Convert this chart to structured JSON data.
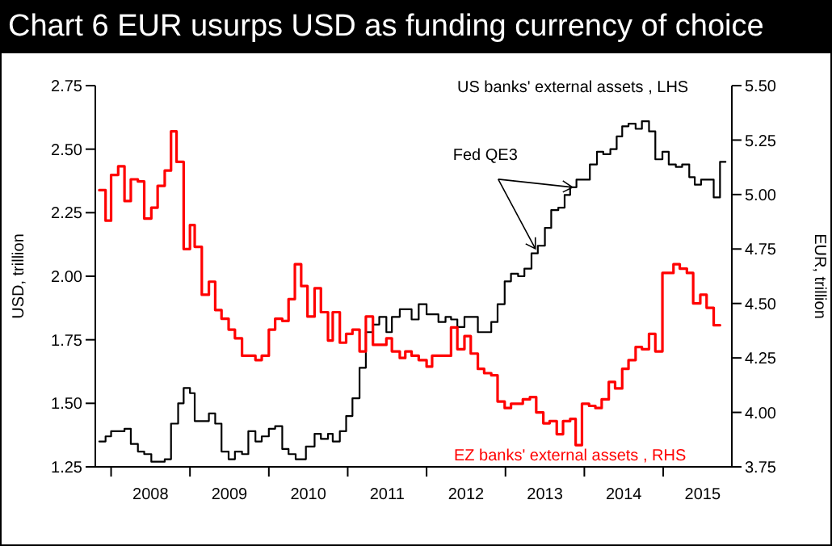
{
  "chart_data": {
    "type": "line",
    "title": "Chart 6 EUR usurps USD as funding currency of choice",
    "ylabel": "USD, trillion",
    "y2label": "EUR, trillion",
    "annotations": [
      {
        "text": "Fed QE3",
        "x": 2013.85,
        "y": 2.35
      }
    ],
    "line_style": "solid",
    "marker": "none",
    "xlim": [
      2007.8,
      2015.87
    ],
    "xticks": [
      {
        "value": 2008,
        "label": null
      },
      {
        "value": 2008.5,
        "label": "2008"
      },
      {
        "value": 2009,
        "label": null
      },
      {
        "value": 2009.5,
        "label": "2009"
      },
      {
        "value": 2010,
        "label": null
      },
      {
        "value": 2010.5,
        "label": "2010"
      },
      {
        "value": 2011,
        "label": null
      },
      {
        "value": 2011.5,
        "label": "2011"
      },
      {
        "value": 2012,
        "label": null
      },
      {
        "value": 2012.5,
        "label": "2012"
      },
      {
        "value": 2013,
        "label": null
      },
      {
        "value": 2013.5,
        "label": "2013"
      },
      {
        "value": 2014,
        "label": null
      },
      {
        "value": 2014.5,
        "label": "2014"
      },
      {
        "value": 2015,
        "label": null
      },
      {
        "value": 2015.5,
        "label": "2015"
      }
    ],
    "ylim": [
      1.25,
      2.75
    ],
    "yticks": [
      1.25,
      {
        "value": 1.5,
        "label": "1.50"
      },
      1.75,
      {
        "value": 2,
        "label": "2.00"
      },
      2.25,
      {
        "value": 2.5,
        "label": "2.50"
      },
      2.75
    ],
    "y2lim": [
      3.75,
      5.5
    ],
    "y2ticks": [
      3.75,
      {
        "value": 4,
        "label": "4.00"
      },
      4.25,
      {
        "value": 4.5,
        "label": "4.50"
      },
      4.75,
      {
        "value": 5,
        "label": "5.00"
      },
      5.25,
      {
        "value": 5.5,
        "label": "5.50"
      }
    ],
    "series": [
      {
        "name": "US banks' external assets , LHS",
        "color": "#000000",
        "type": "step",
        "axis": "y",
        "x": [
          2007.85,
          2007.93,
          2008.0,
          2008.09,
          2008.17,
          2008.25,
          2008.34,
          2008.42,
          2008.51,
          2008.61,
          2008.68,
          2008.76,
          2008.85,
          2008.92,
          2009.0,
          2009.06,
          2009.24,
          2009.32,
          2009.4,
          2009.49,
          2009.57,
          2009.66,
          2009.74,
          2009.83,
          2009.91,
          2010.0,
          2010.08,
          2010.17,
          2010.25,
          2010.34,
          2010.47,
          2010.58,
          2010.66,
          2010.75,
          2010.81,
          2010.9,
          2010.98,
          2011.06,
          2011.15,
          2011.23,
          2011.32,
          2011.4,
          2011.49,
          2011.56,
          2011.66,
          2011.73,
          2011.81,
          2011.9,
          2012.0,
          2012.07,
          2012.15,
          2012.24,
          2012.31,
          2012.39,
          2012.48,
          2012.56,
          2012.65,
          2012.73,
          2012.82,
          2012.9,
          2012.99,
          2013.07,
          2013.16,
          2013.24,
          2013.33,
          2013.41,
          2013.5,
          2013.58,
          2013.67,
          2013.75,
          2013.82,
          2013.9,
          2013.99,
          2014.07,
          2014.16,
          2014.24,
          2014.33,
          2014.41,
          2014.48,
          2014.56,
          2014.65,
          2014.73,
          2014.82,
          2014.9,
          2014.99,
          2015.07,
          2015.16,
          2015.24,
          2015.33,
          2015.4,
          2015.48,
          2015.64,
          2015.72,
          2015.79
        ],
        "values": [
          1.35,
          1.37,
          1.39,
          1.39,
          1.4,
          1.34,
          1.31,
          1.3,
          1.27,
          1.27,
          1.28,
          1.42,
          1.5,
          1.56,
          1.54,
          1.43,
          1.46,
          1.42,
          1.31,
          1.28,
          1.31,
          1.3,
          1.39,
          1.35,
          1.37,
          1.4,
          1.41,
          1.32,
          1.3,
          1.28,
          1.33,
          1.38,
          1.36,
          1.38,
          1.35,
          1.39,
          1.45,
          1.52,
          1.64,
          1.78,
          1.81,
          1.84,
          1.78,
          1.84,
          1.87,
          1.87,
          1.83,
          1.89,
          1.85,
          1.85,
          1.82,
          1.84,
          1.83,
          1.8,
          1.84,
          1.84,
          1.78,
          1.78,
          1.82,
          1.89,
          1.98,
          2.01,
          2.0,
          2.03,
          2.09,
          2.12,
          2.19,
          2.26,
          2.27,
          2.32,
          2.35,
          2.38,
          2.38,
          2.44,
          2.49,
          2.48,
          2.5,
          2.55,
          2.59,
          2.6,
          2.58,
          2.61,
          2.57,
          2.46,
          2.49,
          2.44,
          2.43,
          2.44,
          2.39,
          2.36,
          2.38,
          2.31,
          2.45,
          2.45
        ]
      },
      {
        "name": "EZ banks' external assets , RHS",
        "color": "#ff0000",
        "type": "step",
        "axis": "y2",
        "x": [
          2007.85,
          2007.93,
          2008.0,
          2008.09,
          2008.17,
          2008.25,
          2008.34,
          2008.42,
          2008.51,
          2008.59,
          2008.68,
          2008.76,
          2008.83,
          2008.92,
          2009.0,
          2009.06,
          2009.15,
          2009.24,
          2009.32,
          2009.4,
          2009.49,
          2009.57,
          2009.66,
          2009.83,
          2009.91,
          2010.0,
          2010.08,
          2010.17,
          2010.25,
          2010.33,
          2010.41,
          2010.49,
          2010.58,
          2010.66,
          2010.75,
          2010.81,
          2010.9,
          2010.98,
          2011.06,
          2011.15,
          2011.23,
          2011.32,
          2011.4,
          2011.49,
          2011.56,
          2011.66,
          2011.73,
          2011.81,
          2011.9,
          2012.0,
          2012.07,
          2012.15,
          2012.31,
          2012.39,
          2012.48,
          2012.56,
          2012.65,
          2012.73,
          2012.82,
          2012.9,
          2012.99,
          2013.07,
          2013.22,
          2013.31,
          2013.39,
          2013.48,
          2013.56,
          2013.65,
          2013.73,
          2013.82,
          2013.89,
          2013.97,
          2014.06,
          2014.14,
          2014.22,
          2014.31,
          2014.39,
          2014.48,
          2014.56,
          2014.65,
          2014.73,
          2014.82,
          2014.9,
          2014.99,
          2015.13,
          2015.21,
          2015.3,
          2015.38,
          2015.47,
          2015.55,
          2015.64,
          2015.72
        ],
        "values": [
          5.02,
          4.88,
          5.09,
          5.13,
          4.97,
          5.07,
          5.06,
          4.89,
          4.94,
          5.04,
          5.11,
          5.29,
          5.15,
          4.75,
          4.86,
          4.76,
          4.54,
          4.6,
          4.47,
          4.43,
          4.38,
          4.34,
          4.26,
          4.24,
          4.26,
          4.38,
          4.43,
          4.42,
          4.52,
          4.68,
          4.58,
          4.44,
          4.57,
          4.46,
          4.33,
          4.46,
          4.32,
          4.36,
          4.38,
          4.28,
          4.44,
          4.31,
          4.31,
          4.34,
          4.28,
          4.25,
          4.28,
          4.26,
          4.24,
          4.21,
          4.26,
          4.26,
          4.39,
          4.29,
          4.35,
          4.27,
          4.2,
          4.18,
          4.17,
          4.05,
          4.02,
          4.04,
          4.06,
          4.07,
          4.0,
          3.95,
          3.96,
          3.9,
          3.96,
          3.97,
          3.85,
          4.04,
          4.03,
          4.02,
          4.06,
          4.14,
          4.11,
          4.2,
          4.24,
          4.3,
          4.29,
          4.36,
          4.28,
          4.64,
          4.68,
          4.66,
          4.64,
          4.5,
          4.54,
          4.48,
          4.4,
          4.4
        ]
      }
    ]
  }
}
